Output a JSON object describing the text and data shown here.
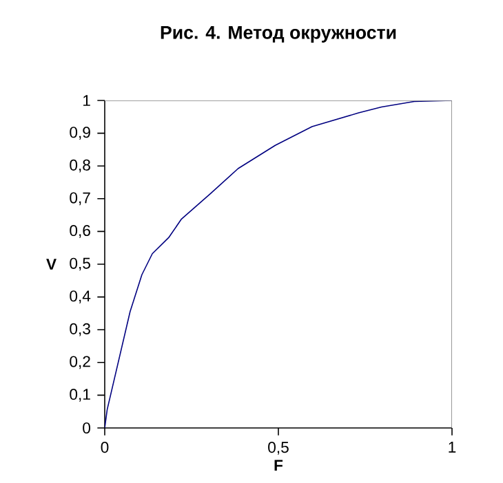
{
  "chart_data": {
    "type": "line",
    "title": "Рис. 4. Метод окружности",
    "xlabel": "F",
    "ylabel": "V",
    "x": [
      0,
      0.007,
      0.073,
      0.107,
      0.137,
      0.184,
      0.221,
      0.304,
      0.384,
      0.491,
      0.597,
      0.731,
      0.797,
      0.891,
      1
    ],
    "series": [
      {
        "color": "#000080",
        "values": [
          0,
          0.056,
          0.355,
          0.468,
          0.532,
          0.581,
          0.638,
          0.715,
          0.792,
          0.863,
          0.92,
          0.962,
          0.98,
          0.997,
          1
        ]
      }
    ],
    "xlim": [
      0,
      1
    ],
    "ylim": [
      0,
      1
    ],
    "xticks": [
      0,
      {
        "value": 0.5,
        "label": "0,5"
      },
      1
    ],
    "yticks": [
      0,
      {
        "value": 0.1,
        "label": "0,1"
      },
      {
        "value": 0.2,
        "label": "0,2"
      },
      {
        "value": 0.3,
        "label": "0,3"
      },
      {
        "value": 0.4,
        "label": "0,4"
      },
      {
        "value": 0.5,
        "label": "0,5"
      },
      {
        "value": 0.6,
        "label": "0,6"
      },
      {
        "value": 0.7,
        "label": "0,7"
      },
      {
        "value": 0.8,
        "label": "0,8"
      },
      {
        "value": 0.9,
        "label": "0,9"
      },
      1
    ]
  }
}
